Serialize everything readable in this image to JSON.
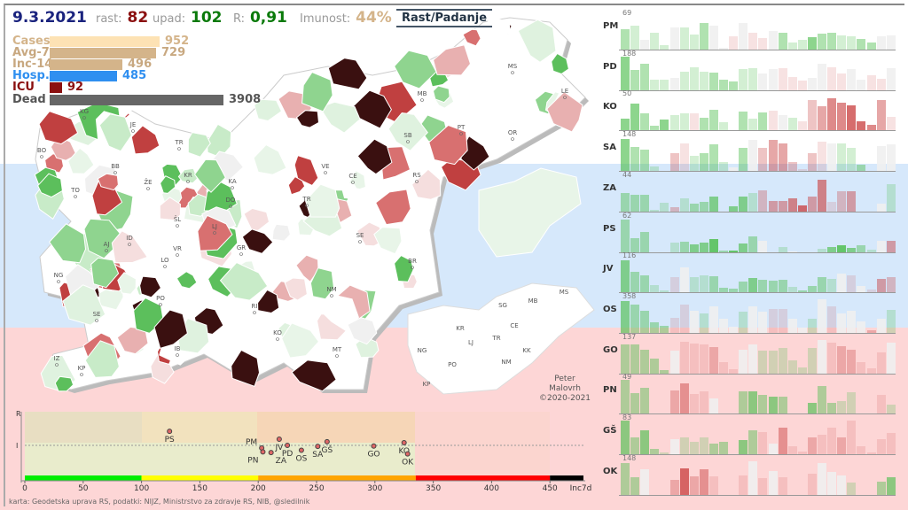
{
  "header": {
    "date": "9.3.2021",
    "rast_label": "rast:",
    "rast": "82",
    "upad_label": "upad:",
    "upad": "102",
    "r_label": "R:",
    "r": "0,91",
    "imunost_label": "Imunost:",
    "imunost": "44%",
    "toggle": "Rast/Padanje"
  },
  "stats": [
    {
      "label": "Cases",
      "value": "952",
      "color": "#fde2b4",
      "lcolor": "#d4b48a"
    },
    {
      "label": "Avg-7",
      "value": "729",
      "color": "#d4b48a",
      "lcolor": "#c8a880"
    },
    {
      "label": "Inc-14",
      "value": "496",
      "color": "#d4b48a",
      "lcolor": "#c8a880"
    },
    {
      "label": "Hosp.",
      "value": "485",
      "color": "#2f8ff0",
      "lcolor": "#2f8ff0"
    },
    {
      "label": "ICU",
      "value": "92",
      "color": "#8b1010",
      "lcolor": "#8b1010"
    },
    {
      "label": "Dead",
      "value": "3908",
      "color": "#666666",
      "lcolor": "#555555"
    }
  ],
  "map": {
    "labels": [
      "KG",
      "JE",
      "BO",
      "BB",
      "TR",
      "KR",
      "ŽE",
      "TO",
      "ŠL",
      "KA",
      "DO",
      "LJ",
      "VE",
      "CE",
      "TR",
      "SB",
      "MB",
      "MS",
      "PT",
      "OR",
      "LE",
      "RS",
      "SE",
      "BR",
      "ID",
      "NG",
      "AJ",
      "LO",
      "VR",
      "GR",
      "PO",
      "SE",
      "RI",
      "KO",
      "NM",
      "MT",
      "IB",
      "IZ",
      "KP"
    ],
    "inset_labels": [
      "MS",
      "SG",
      "MB",
      "KR",
      "TR",
      "CE",
      "NG",
      "LJ",
      "PO",
      "NM",
      "KK",
      "KP"
    ],
    "credit": [
      "Peter",
      "Malovrh",
      "©2020-2021"
    ]
  },
  "small_multiples": [
    {
      "name": "PM",
      "max": "69",
      "h": [
        60,
        70,
        30,
        50,
        12,
        65,
        65,
        45,
        80,
        70,
        5,
        40,
        78,
        50,
        35,
        55,
        50,
        20,
        28,
        36,
        47,
        50,
        42,
        40,
        32,
        22,
        40,
        43
      ],
      "t": [
        -2,
        -1,
        0,
        -1,
        -1,
        0,
        -1,
        -1,
        -2,
        0,
        0,
        1,
        0,
        1,
        1,
        0,
        -2,
        -1,
        -1,
        -3,
        -2,
        -2,
        -1,
        -1,
        -2,
        -2,
        0,
        0
      ]
    },
    {
      "name": "PD",
      "max": "188",
      "h": [
        100,
        60,
        78,
        30,
        30,
        35,
        55,
        68,
        55,
        52,
        32,
        25,
        63,
        65,
        48,
        63,
        65,
        38,
        28,
        36,
        78,
        68,
        50,
        63,
        32,
        43,
        34,
        65
      ],
      "t": [
        -3,
        -2,
        -2,
        -1,
        -1,
        0,
        -1,
        -1,
        -1,
        -2,
        -2,
        -2,
        -1,
        -1,
        0,
        0,
        1,
        1,
        1,
        0,
        0,
        1,
        1,
        0,
        0,
        1,
        1,
        0
      ],
      "bg": ""
    },
    {
      "name": "KO",
      "max": "50",
      "h": [
        35,
        80,
        52,
        13,
        33,
        45,
        50,
        52,
        38,
        62,
        25,
        2,
        57,
        35,
        53,
        58,
        45,
        38,
        27,
        90,
        73,
        95,
        82,
        75,
        28,
        17,
        90,
        40
      ],
      "t": [
        -3,
        -3,
        -2,
        -2,
        -3,
        -1,
        -1,
        1,
        -2,
        -2,
        -1,
        -1,
        -2,
        -1,
        -2,
        1,
        0,
        -1,
        1,
        2,
        3,
        4,
        4,
        5,
        5,
        4,
        3,
        1
      ]
    },
    {
      "name": "SA",
      "max": "148",
      "h": [
        95,
        72,
        63,
        13,
        0,
        53,
        83,
        45,
        53,
        78,
        27,
        10,
        68,
        93,
        70,
        93,
        83,
        27,
        5,
        53,
        88,
        83,
        83,
        68,
        20,
        0,
        75,
        80
      ],
      "t": [
        -3,
        -2,
        -2,
        -1,
        0,
        2,
        1,
        -1,
        -2,
        -2,
        -1,
        0,
        -2,
        0,
        2,
        3,
        3,
        2,
        1,
        2,
        1,
        0,
        -1,
        -1,
        -2,
        0,
        0,
        0
      ]
    },
    {
      "name": "ZA",
      "max": "44",
      "h": [
        55,
        50,
        50,
        5,
        25,
        12,
        40,
        22,
        28,
        45,
        0,
        15,
        45,
        55,
        63,
        30,
        30,
        38,
        18,
        45,
        95,
        28,
        60,
        60,
        0,
        0,
        22,
        80
      ],
      "t": [
        -2,
        -2,
        -2,
        -1,
        -1,
        2,
        -1,
        -2,
        -2,
        -3,
        0,
        -3,
        -3,
        -1,
        2,
        3,
        3,
        4,
        5,
        3,
        4,
        1,
        2,
        3,
        0,
        0,
        0,
        -1
      ]
    },
    {
      "name": "PS",
      "max": "62",
      "h": [
        95,
        42,
        58,
        0,
        0,
        27,
        30,
        22,
        28,
        38,
        3,
        5,
        26,
        45,
        33,
        0,
        15,
        2,
        0,
        0,
        10,
        15,
        20,
        12,
        20,
        7,
        33,
        33
      ],
      "t": [
        -2,
        -2,
        -2,
        0,
        0,
        -1,
        -2,
        -3,
        -3,
        -4,
        -2,
        -4,
        -3,
        -2,
        0,
        0,
        -1,
        0,
        0,
        0,
        -1,
        -3,
        -4,
        -3,
        -2,
        -1,
        0,
        3
      ]
    },
    {
      "name": "JV",
      "max": "116",
      "h": [
        95,
        62,
        50,
        22,
        5,
        45,
        75,
        45,
        50,
        48,
        15,
        12,
        33,
        42,
        37,
        35,
        37,
        16,
        6,
        20,
        45,
        40,
        55,
        50,
        18,
        8,
        40,
        46
      ],
      "t": [
        -3,
        -2,
        -2,
        -1,
        -1,
        1,
        0,
        -1,
        -1,
        -2,
        -2,
        -2,
        -2,
        -3,
        -2,
        -2,
        -2,
        -1,
        -2,
        -2,
        -2,
        -1,
        0,
        1,
        0,
        1,
        3,
        2
      ]
    },
    {
      "name": "OS",
      "max": "358",
      "h": [
        95,
        85,
        65,
        32,
        22,
        45,
        83,
        65,
        58,
        78,
        42,
        18,
        63,
        78,
        63,
        70,
        70,
        42,
        16,
        42,
        100,
        78,
        58,
        65,
        35,
        8,
        42,
        67
      ],
      "t": [
        -3,
        -2,
        -2,
        -2,
        -2,
        1,
        1,
        0,
        -1,
        0,
        0,
        0,
        -1,
        0,
        0,
        1,
        1,
        0,
        0,
        -1,
        0,
        1,
        0,
        0,
        0,
        2,
        0,
        -1
      ]
    },
    {
      "name": "GO",
      "max": "137",
      "h": [
        85,
        85,
        70,
        45,
        10,
        68,
        95,
        88,
        85,
        78,
        32,
        12,
        70,
        85,
        68,
        68,
        76,
        38,
        18,
        76,
        100,
        90,
        80,
        70,
        33,
        15,
        62,
        92
      ],
      "t": [
        -2,
        -2,
        -2,
        -2,
        -2,
        0,
        1,
        1,
        1,
        2,
        1,
        1,
        0,
        0,
        -1,
        -1,
        -1,
        -1,
        -1,
        -1,
        0,
        1,
        2,
        2,
        1,
        1,
        1,
        0
      ]
    },
    {
      "name": "PN",
      "max": "49",
      "h": [
        100,
        62,
        78,
        2,
        0,
        70,
        90,
        60,
        66,
        45,
        0,
        0,
        66,
        66,
        55,
        50,
        50,
        0,
        0,
        33,
        83,
        33,
        38,
        63,
        0,
        0,
        55,
        28
      ],
      "t": [
        -2,
        -2,
        -2,
        -1,
        0,
        2,
        3,
        1,
        1,
        0,
        0,
        0,
        -2,
        -3,
        -2,
        -3,
        -2,
        0,
        0,
        -3,
        -2,
        -2,
        -1,
        -1,
        0,
        0,
        1,
        -1
      ]
    },
    {
      "name": "GŠ",
      "max": "83",
      "h": [
        100,
        50,
        70,
        17,
        5,
        45,
        50,
        38,
        50,
        32,
        38,
        0,
        43,
        72,
        65,
        32,
        80,
        25,
        7,
        50,
        58,
        78,
        50,
        100,
        25,
        5,
        45,
        62
      ],
      "t": [
        -3,
        -2,
        -3,
        -2,
        -1,
        0,
        -1,
        -1,
        -1,
        -2,
        -2,
        0,
        -3,
        -2,
        1,
        0,
        3,
        1,
        1,
        2,
        1,
        1,
        2,
        1,
        1,
        1,
        1,
        1
      ]
    },
    {
      "name": "OK",
      "max": "148",
      "h": [
        95,
        52,
        75,
        0,
        0,
        45,
        78,
        55,
        75,
        55,
        0,
        0,
        58,
        100,
        50,
        70,
        52,
        0,
        0,
        62,
        95,
        68,
        58,
        37,
        0,
        0,
        40,
        52
      ],
      "t": [
        -2,
        -2,
        0,
        0,
        0,
        2,
        5,
        2,
        3,
        1,
        0,
        0,
        1,
        0,
        1,
        0,
        1,
        0,
        0,
        1,
        0,
        0,
        0,
        -1,
        0,
        0,
        -2,
        -3
      ]
    }
  ],
  "chart_data": {
    "type": "scatter",
    "xlabel": "Inc7d",
    "ylabel": "R",
    "xlim": [
      0,
      450
    ],
    "xticks": [
      "0",
      "50",
      "100",
      "150",
      "200",
      "250",
      "300",
      "350",
      "400",
      "450"
    ],
    "yticks": [
      "R",
      "I"
    ],
    "zones": [
      {
        "from": 0,
        "to": 100,
        "color": "#00ee00"
      },
      {
        "from": 100,
        "to": 200,
        "color": "#ffff00"
      },
      {
        "from": 200,
        "to": 335,
        "color": "#ffa500"
      },
      {
        "from": 335,
        "to": 450,
        "color": "#ff0000"
      },
      {
        "from": 450,
        "to": 500,
        "color": "#000000"
      }
    ],
    "points": [
      {
        "label": "PS",
        "x": 124,
        "y": 1.43
      },
      {
        "label": "PM",
        "x": 203,
        "y": 0.92
      },
      {
        "label": "PN",
        "x": 204,
        "y": 0.8
      },
      {
        "label": "ZA",
        "x": 211,
        "y": 0.78
      },
      {
        "label": "JV",
        "x": 218,
        "y": 1.19
      },
      {
        "label": "PD",
        "x": 225,
        "y": 1.0
      },
      {
        "label": "OS",
        "x": 237,
        "y": 0.85
      },
      {
        "label": "SA",
        "x": 251,
        "y": 0.97
      },
      {
        "label": "GŠ",
        "x": 259,
        "y": 1.11
      },
      {
        "label": "GO",
        "x": 299,
        "y": 0.98
      },
      {
        "label": "KO",
        "x": 325,
        "y": 1.08
      },
      {
        "label": "OK",
        "x": 328,
        "y": 0.74
      }
    ],
    "source": "karta: Geodetska uprava RS,  podatki: NIJZ, Ministrstvo za zdravje RS, NIB, @sledilnik"
  }
}
